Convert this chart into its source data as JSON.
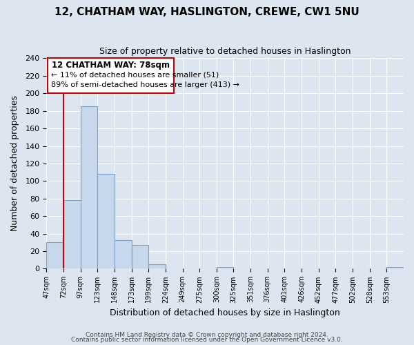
{
  "title": "12, CHATHAM WAY, HASLINGTON, CREWE, CW1 5NU",
  "subtitle": "Size of property relative to detached houses in Haslington",
  "xlabel": "Distribution of detached houses by size in Haslington",
  "ylabel": "Number of detached properties",
  "bar_color": "#c8d8ec",
  "bar_edge_color": "#7aa0c4",
  "bin_labels": [
    "47sqm",
    "72sqm",
    "97sqm",
    "123sqm",
    "148sqm",
    "173sqm",
    "199sqm",
    "224sqm",
    "249sqm",
    "275sqm",
    "300sqm",
    "325sqm",
    "351sqm",
    "376sqm",
    "401sqm",
    "426sqm",
    "452sqm",
    "477sqm",
    "502sqm",
    "528sqm",
    "553sqm"
  ],
  "bar_heights": [
    30,
    78,
    185,
    108,
    33,
    27,
    5,
    0,
    0,
    0,
    2,
    0,
    0,
    0,
    0,
    0,
    0,
    0,
    0,
    0,
    2
  ],
  "ylim": [
    0,
    240
  ],
  "yticks": [
    0,
    20,
    40,
    60,
    80,
    100,
    120,
    140,
    160,
    180,
    200,
    220,
    240
  ],
  "annotation_title": "12 CHATHAM WAY: 78sqm",
  "annotation_line1": "← 11% of detached houses are smaller (51)",
  "annotation_line2": "89% of semi-detached houses are larger (413) →",
  "annotation_box_color": "#ffffff",
  "annotation_box_edge": "#cc0000",
  "property_line_color": "#cc0000",
  "background_color": "#dde6f0",
  "grid_color": "#ffffff",
  "footer1": "Contains HM Land Registry data © Crown copyright and database right 2024.",
  "footer2": "Contains public sector information licensed under the Open Government Licence v3.0."
}
